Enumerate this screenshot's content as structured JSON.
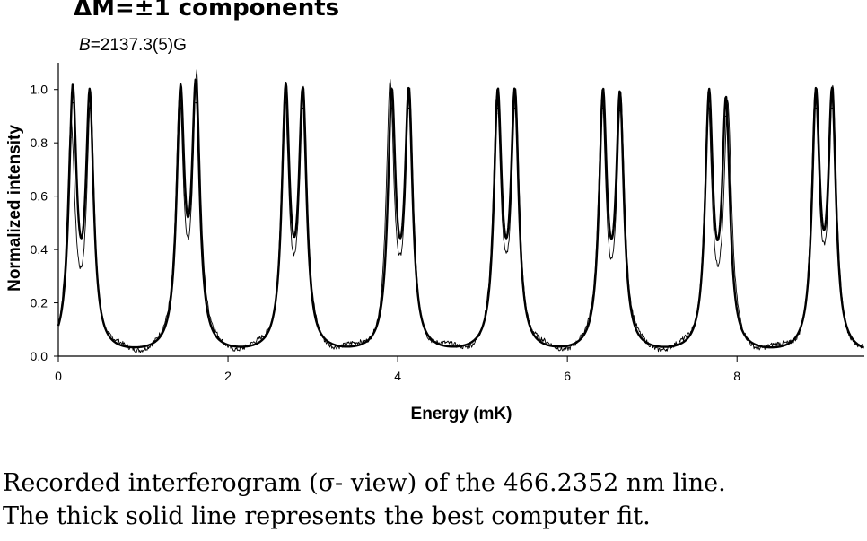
{
  "chart_data": {
    "type": "line",
    "title": "ΔM=±1 components",
    "subtitle_symbol": "B",
    "subtitle_value": "=2137.3(5)G",
    "xlabel": "Energy (mK)",
    "ylabel": "Normalized intensity",
    "xlim": [
      0,
      9.5
    ],
    "ylim": [
      0,
      1.1
    ],
    "x_ticks": [
      0,
      2,
      4,
      6,
      8
    ],
    "x_tick_labels": [
      "0",
      "2",
      "4",
      "6",
      "8"
    ],
    "y_ticks": [
      0,
      0.2,
      0.4,
      0.6,
      0.8,
      1.0
    ],
    "y_tick_labels": [
      "0.0",
      "0.2",
      "0.4",
      "0.6",
      "0.8",
      "1.0"
    ],
    "grid": false,
    "series": [
      {
        "style": "thick",
        "peaks": [
          {
            "x": 0.17,
            "y": 0.95
          },
          {
            "x": 0.37,
            "y": 0.93
          },
          {
            "x": 1.44,
            "y": 0.93
          },
          {
            "x": 1.62,
            "y": 0.95
          },
          {
            "x": 2.68,
            "y": 0.95
          },
          {
            "x": 2.88,
            "y": 0.93
          },
          {
            "x": 3.93,
            "y": 0.93
          },
          {
            "x": 4.13,
            "y": 0.93
          },
          {
            "x": 5.18,
            "y": 0.93
          },
          {
            "x": 5.38,
            "y": 0.93
          },
          {
            "x": 6.42,
            "y": 0.93
          },
          {
            "x": 6.62,
            "y": 0.92
          },
          {
            "x": 7.67,
            "y": 0.93
          },
          {
            "x": 7.87,
            "y": 0.9
          },
          {
            "x": 8.93,
            "y": 0.93
          },
          {
            "x": 9.12,
            "y": 0.93
          }
        ]
      },
      {
        "style": "thin",
        "peaks": [
          {
            "x": 0.15,
            "y": 0.82
          },
          {
            "x": 0.38,
            "y": 0.92
          },
          {
            "x": 1.43,
            "y": 0.91
          },
          {
            "x": 1.63,
            "y": 1.0
          },
          {
            "x": 2.67,
            "y": 0.93
          },
          {
            "x": 2.89,
            "y": 0.94
          },
          {
            "x": 3.91,
            "y": 0.97
          },
          {
            "x": 4.14,
            "y": 0.94
          },
          {
            "x": 5.17,
            "y": 0.91
          },
          {
            "x": 5.39,
            "y": 0.95
          },
          {
            "x": 6.41,
            "y": 0.91
          },
          {
            "x": 6.63,
            "y": 0.92
          },
          {
            "x": 7.66,
            "y": 0.91
          },
          {
            "x": 7.89,
            "y": 0.89
          },
          {
            "x": 8.92,
            "y": 0.93
          },
          {
            "x": 9.13,
            "y": 0.94
          }
        ]
      }
    ]
  },
  "caption": {
    "line1": "Recorded interferogram (σ- view) of the 466.2352 nm line.",
    "line2": "The thick solid line represents the best computer fit."
  }
}
